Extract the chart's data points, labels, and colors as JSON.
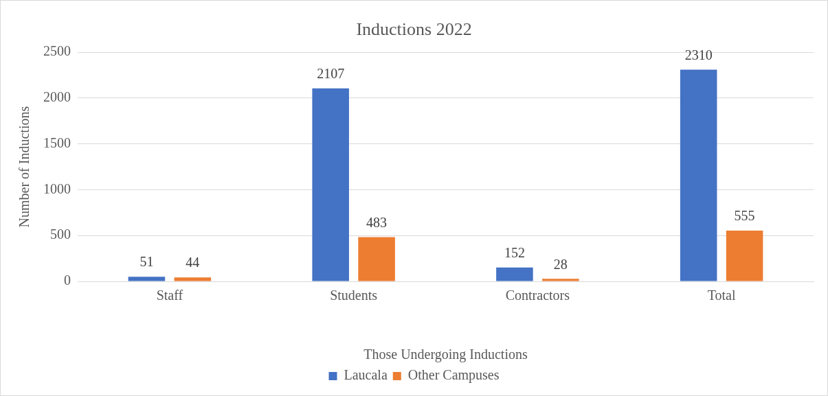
{
  "chart_data": {
    "type": "bar",
    "title": "Inductions 2022",
    "xlabel": "Those Undergoing Inductions",
    "ylabel": "Number of Inductions",
    "categories": [
      "Staff",
      "Students",
      "Contractors",
      "Total"
    ],
    "series": [
      {
        "name": "Laucala",
        "color": "#4472c4",
        "values": [
          51,
          2107,
          152,
          2310
        ]
      },
      {
        "name": "Other Campuses",
        "color": "#ed7d31",
        "values": [
          44,
          483,
          28,
          555
        ]
      }
    ],
    "ylim": [
      0,
      2500
    ],
    "yticks": [
      0,
      500,
      1000,
      1500,
      2000,
      2500
    ],
    "grid": "y",
    "legend": "bottom",
    "data_labels": true
  }
}
